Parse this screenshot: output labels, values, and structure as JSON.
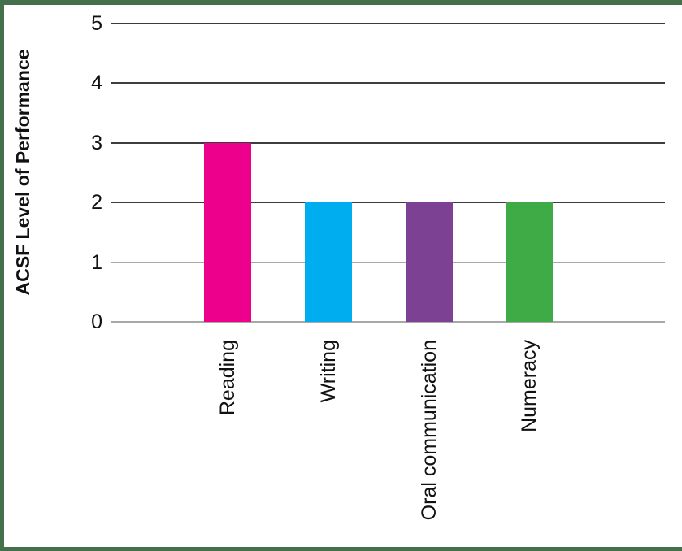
{
  "chart_data": {
    "type": "bar",
    "title": "",
    "xlabel": "",
    "ylabel": "ACSF Level of Performance",
    "ylim": [
      0,
      5
    ],
    "yticks": [
      0,
      1,
      2,
      3,
      4,
      5
    ],
    "grid": true,
    "legend": false,
    "categories": [
      "Reading",
      "Writing",
      "Oral communication",
      "Numeracy"
    ],
    "values": [
      3,
      2,
      2,
      2
    ],
    "bar_colors": [
      "#EC008C",
      "#00AEEF",
      "#7C4192",
      "#3FAB47"
    ]
  },
  "style": {
    "background": "#FFFFFF",
    "frame_border_color": "#44714B",
    "gridline_dark_color": "#3D3D3D",
    "gridline_light_color": "#A8A8A8",
    "axis_baseline_color": "#A8A8A8",
    "text_color": "#111111"
  }
}
